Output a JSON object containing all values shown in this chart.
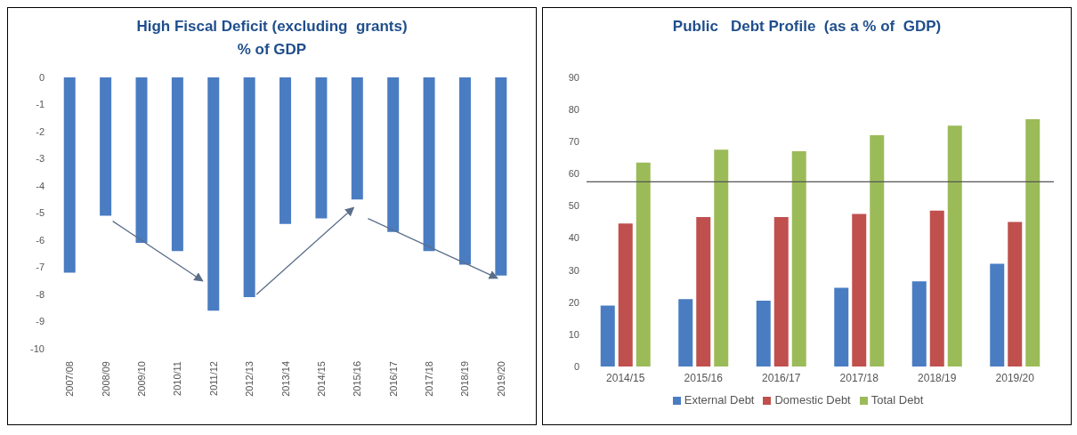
{
  "chart_data": [
    {
      "type": "bar",
      "title": "High Fiscal Deficit (excluding  grants)\n% of GDP",
      "categories": [
        "2007/08",
        "2008/09",
        "2009/10",
        "2010/11",
        "2011/12",
        "2012/13",
        "2013/14",
        "2014/15",
        "2015/16",
        "2016/17",
        "2017/18",
        "2018/19",
        "2019/20"
      ],
      "values": [
        -7.2,
        -5.1,
        -6.1,
        -6.4,
        -8.6,
        -8.1,
        -5.4,
        -5.2,
        -4.5,
        -5.7,
        -6.4,
        -6.9,
        -7.3
      ],
      "color": "#4a7cc2",
      "ylim": [
        -10,
        0
      ],
      "yticks": [
        0,
        -1,
        -2,
        -3,
        -4,
        -5,
        -6,
        -7,
        -8,
        -9,
        -10
      ],
      "grid": false,
      "legend": false
    },
    {
      "type": "bar",
      "title": "Public   Debt Profile  (as a % of  GDP)",
      "categories": [
        "2014/15",
        "2015/16",
        "2016/17",
        "2017/18",
        "2018/19",
        "2019/20"
      ],
      "series": [
        {
          "name": "External Debt",
          "color": "#4a7cc2",
          "values": [
            19,
            21,
            20.5,
            24.5,
            26.5,
            32
          ]
        },
        {
          "name": "Domestic Debt",
          "color": "#c0504d",
          "values": [
            44.5,
            46.5,
            46.5,
            47.5,
            48.5,
            45
          ]
        },
        {
          "name": "Total Debt",
          "color": "#9bbb59",
          "values": [
            63.5,
            67.5,
            67,
            72,
            75,
            77
          ]
        }
      ],
      "ylim": [
        0,
        90
      ],
      "yticks": [
        0,
        10,
        20,
        30,
        40,
        50,
        60,
        70,
        80,
        90
      ],
      "grid": false,
      "legend": "bottom",
      "ref_lines": [
        {
          "axis": "y",
          "value": 57.5,
          "color": "#555555"
        }
      ]
    }
  ]
}
